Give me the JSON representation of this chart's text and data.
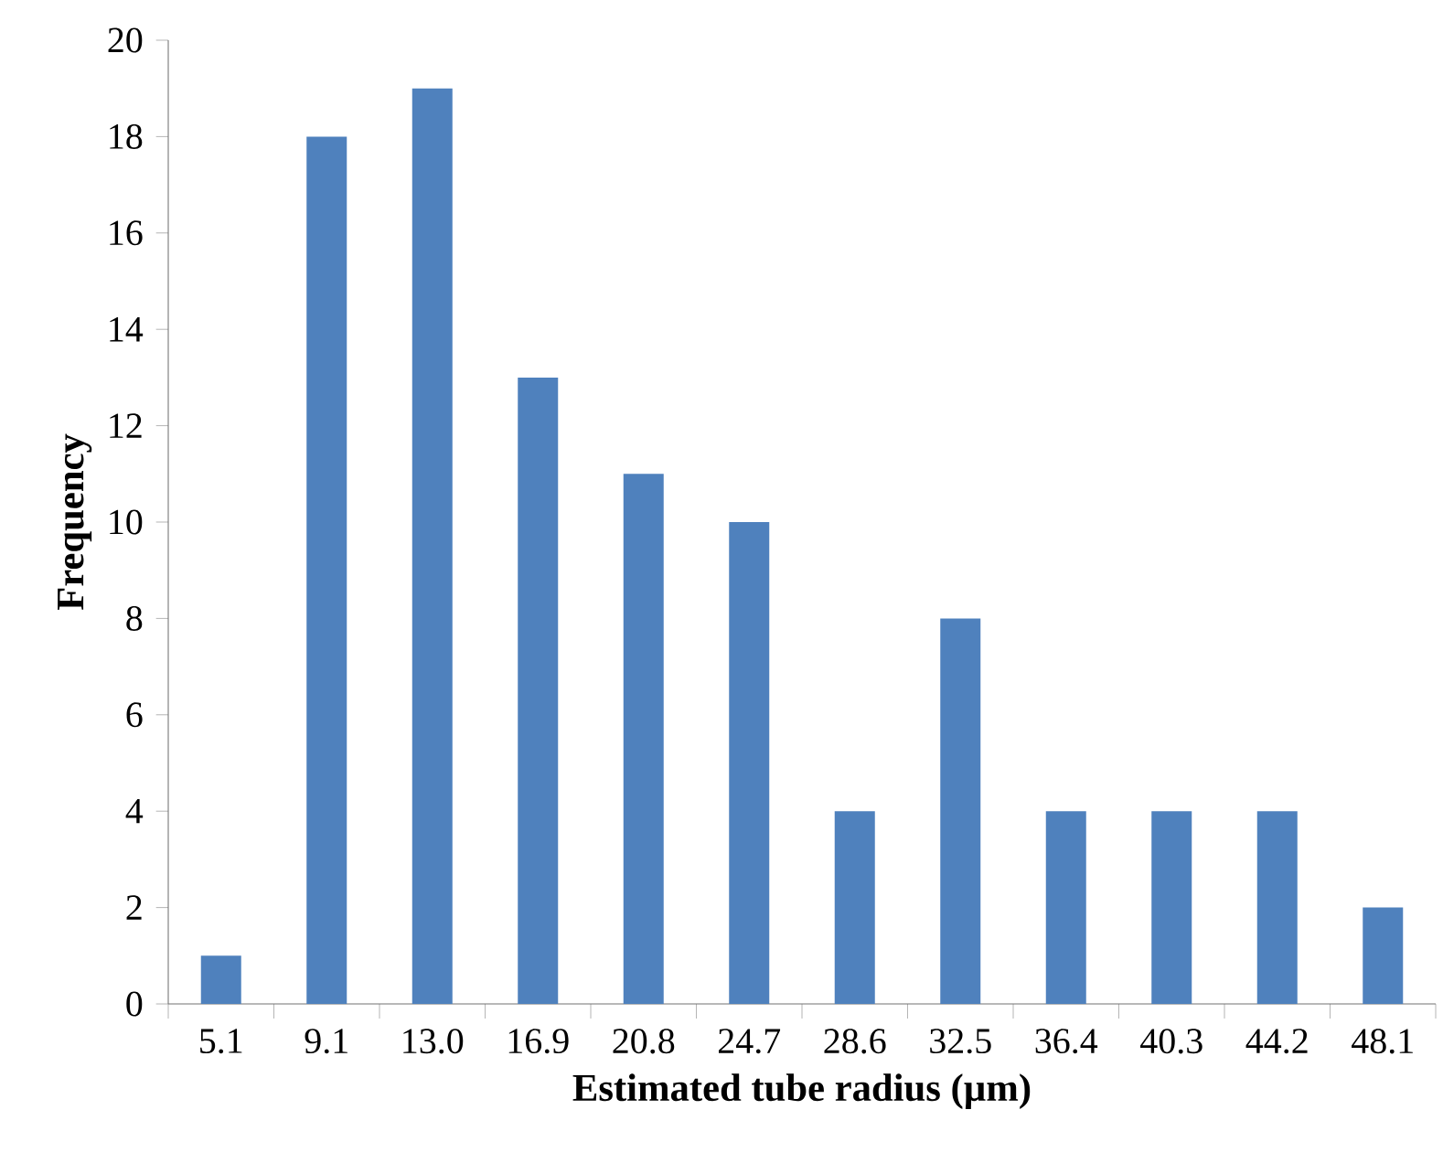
{
  "chart_data": {
    "type": "bar",
    "xlabel": "Estimated tube radius (µm)",
    "ylabel": "Frequency",
    "categories": [
      "5.1",
      "9.1",
      "13.0",
      "16.9",
      "20.8",
      "24.7",
      "28.6",
      "32.5",
      "36.4",
      "40.3",
      "44.2",
      "48.1"
    ],
    "values": [
      1,
      18,
      19,
      13,
      11,
      10,
      4,
      8,
      4,
      4,
      4,
      2
    ],
    "color": "#4f81bd",
    "ylim": [
      0,
      20
    ],
    "yticks": [
      0,
      2,
      4,
      6,
      8,
      10,
      12,
      14,
      16,
      18,
      20
    ]
  }
}
